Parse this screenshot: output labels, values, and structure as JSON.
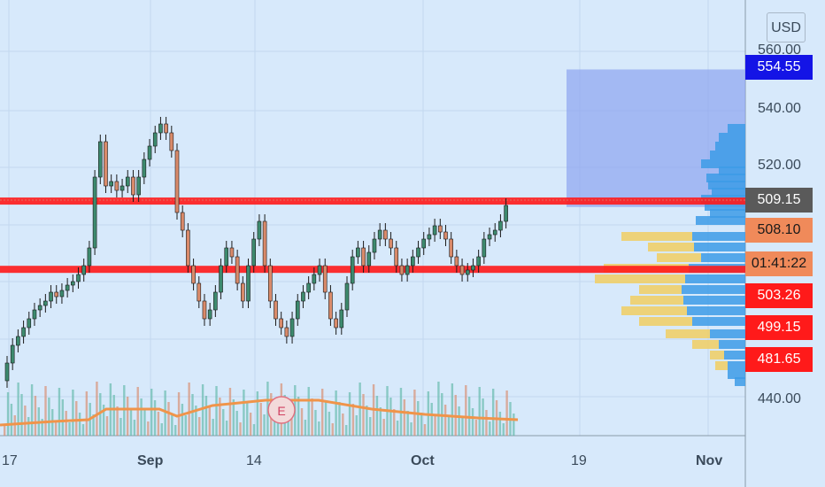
{
  "currency": "USD",
  "colors": {
    "background": "#d7e9fb",
    "up_candle": "#3d8a6e",
    "down_candle": "#d98a6a",
    "support_line": "#ff1a1a",
    "volume_ma": "#f0944a",
    "zone": "#8da4f0",
    "vp_yellow": "#f0cf6a",
    "vp_blue": "#3d9be6"
  },
  "y_axis": {
    "ticks": [
      "560.00",
      "540.00",
      "520.00",
      "440.00"
    ]
  },
  "x_axis": {
    "ticks": [
      {
        "label": "17",
        "bold": false
      },
      {
        "label": "Sep",
        "bold": true
      },
      {
        "label": "14",
        "bold": false
      },
      {
        "label": "Oct",
        "bold": true
      },
      {
        "label": "19",
        "bold": false
      },
      {
        "label": "Nov",
        "bold": true
      }
    ]
  },
  "price_tags": [
    {
      "text": "554.55",
      "bg": "#1414e6",
      "fg": "#ffffff"
    },
    {
      "text": "509.15",
      "bg": "#5a5a5a",
      "fg": "#ffffff"
    },
    {
      "text": "508.10",
      "bg": "#f08a5a",
      "fg": "#1a1a1a"
    },
    {
      "text": "01:41:22",
      "bg": "#f08a5a",
      "fg": "#1a1a1a"
    },
    {
      "text": "503.26",
      "bg": "#ff1a1a",
      "fg": "#ffffff"
    },
    {
      "text": "499.15",
      "bg": "#ff1a1a",
      "fg": "#ffffff"
    },
    {
      "text": "481.65",
      "bg": "#ff1a1a",
      "fg": "#ffffff"
    }
  ],
  "earnings_marker": "E",
  "chart_data": {
    "type": "candlestick",
    "x_range": [
      "Aug 17",
      "Nov"
    ],
    "horizontal_lines": [
      508.1,
      484.0
    ],
    "zone": {
      "low": 506.0,
      "high": 554.55
    },
    "volume_ma_present": true,
    "volume_profile_present": true
  }
}
